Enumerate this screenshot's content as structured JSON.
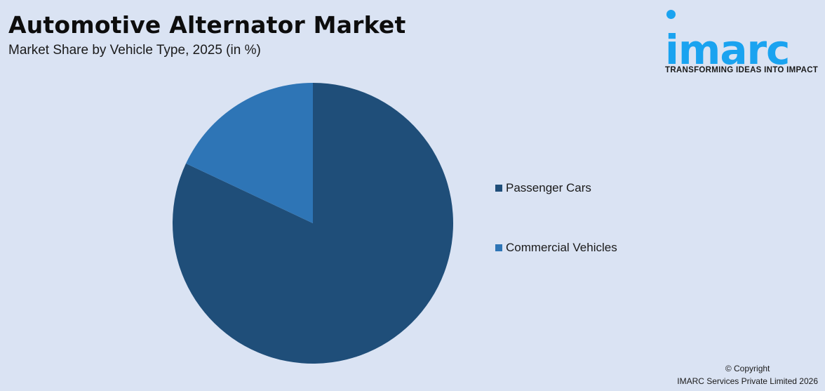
{
  "header": {
    "title": "Automotive Alternator Market",
    "subtitle": "Market Share by Vehicle Type, 2025 (in %)"
  },
  "logo": {
    "wordmark": "imarc",
    "tagline": "TRANSFORMING IDEAS INTO IMPACT",
    "color": "#1aa3f0"
  },
  "legend": {
    "items": [
      {
        "label": "Passenger Cars",
        "color": "#1f4e79"
      },
      {
        "label": "Commercial Vehicles",
        "color": "#2e75b6"
      }
    ]
  },
  "footer": {
    "line1": "© Copyright",
    "line2": "IMARC Services Private Limited 2026"
  },
  "chart_data": {
    "type": "pie",
    "title": "Automotive Alternator Market",
    "subtitle": "Market Share by Vehicle Type, 2025 (in %)",
    "categories": [
      "Passenger Cars",
      "Commercial Vehicles"
    ],
    "values": [
      82,
      18
    ],
    "colors": [
      "#1f4e79",
      "#2e75b6"
    ],
    "start_angle": "12 o'clock",
    "direction": "clockwise",
    "data_labels": false,
    "legend_position": "right"
  }
}
